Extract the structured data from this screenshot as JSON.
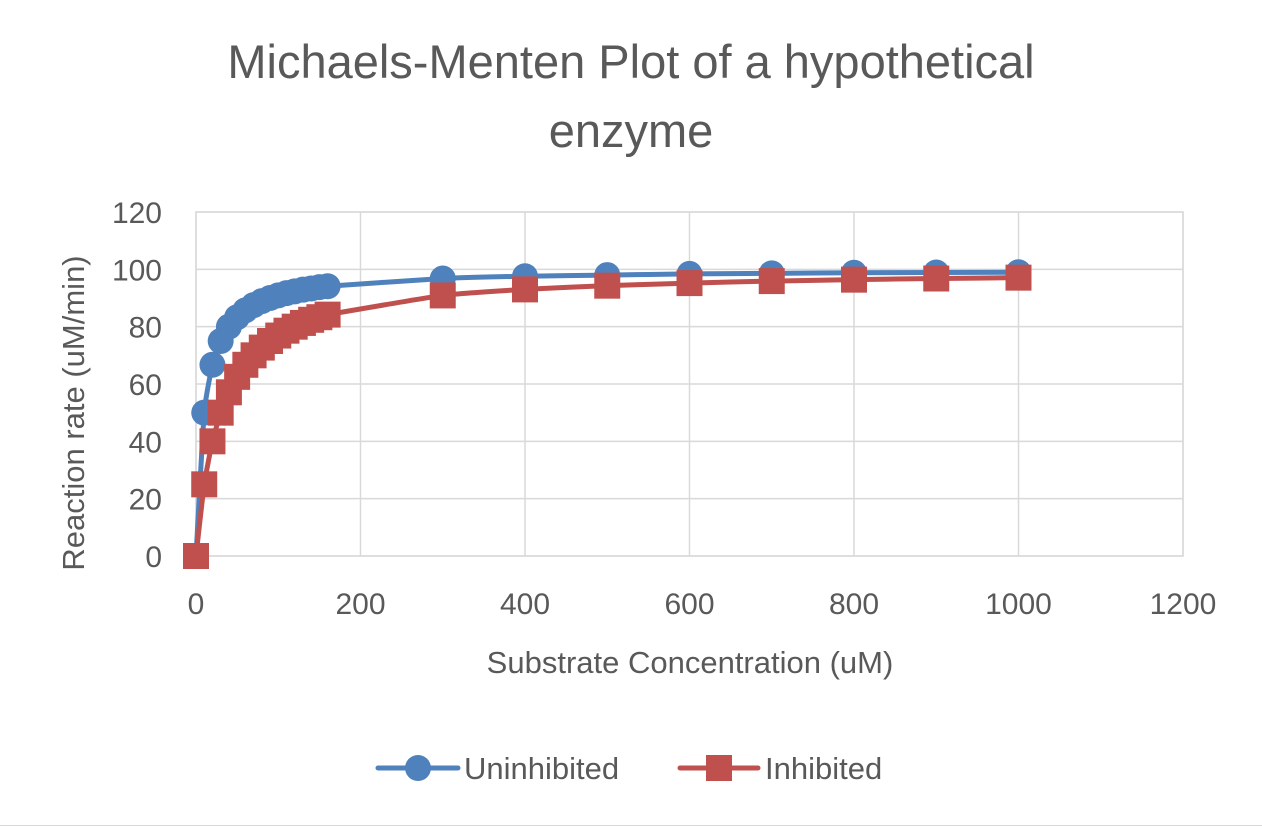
{
  "chart_data": {
    "type": "scatter",
    "title": "Michaels-Menten Plot of a hypothetical enzyme",
    "title_lines": [
      "Michaels-Menten Plot of a hypothetical",
      "enzyme"
    ],
    "xlabel": "Substrate Concentration (uM)",
    "ylabel": "Reaction rate (uM/min)",
    "xlim": [
      0,
      1200
    ],
    "ylim": [
      0,
      120
    ],
    "x_ticks": [
      0,
      200,
      400,
      600,
      800,
      1000,
      1200
    ],
    "y_ticks": [
      0,
      20,
      40,
      60,
      80,
      100,
      120
    ],
    "grid": true,
    "legend_position": "bottom",
    "smooth_lines": true,
    "series": [
      {
        "name": "Uninhibited",
        "marker": "circle",
        "color": "#4f81bd",
        "x": [
          0,
          10,
          20,
          30,
          40,
          50,
          60,
          70,
          80,
          90,
          100,
          110,
          120,
          130,
          140,
          150,
          160,
          300,
          400,
          500,
          600,
          700,
          800,
          900,
          1000
        ],
        "y": [
          0,
          50,
          66.7,
          75,
          80,
          83.3,
          85.7,
          87.5,
          88.9,
          90,
          90.9,
          91.7,
          92.3,
          92.9,
          93.3,
          93.8,
          94.1,
          96.8,
          97.6,
          98,
          98.4,
          98.6,
          98.8,
          98.9,
          99
        ]
      },
      {
        "name": "Inhibited",
        "marker": "square",
        "color": "#c0504d",
        "x": [
          0,
          10,
          20,
          30,
          40,
          50,
          60,
          70,
          80,
          90,
          100,
          110,
          120,
          130,
          140,
          150,
          160,
          300,
          400,
          500,
          600,
          700,
          800,
          900,
          1000
        ],
        "y": [
          0,
          25,
          40,
          50,
          57.1,
          62.5,
          66.7,
          70,
          72.7,
          75,
          76.9,
          78.6,
          80,
          81.3,
          82.4,
          83.3,
          84.2,
          90.9,
          93,
          94.3,
          95.2,
          95.9,
          96.4,
          96.8,
          97.1
        ]
      }
    ]
  }
}
